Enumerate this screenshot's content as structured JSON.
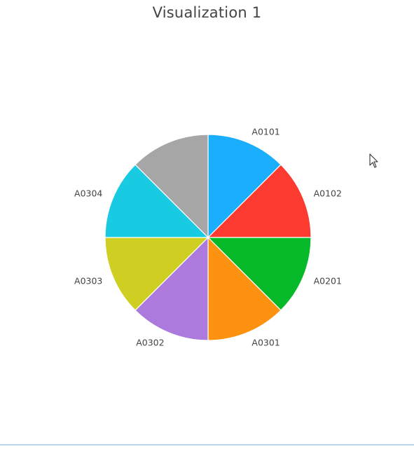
{
  "visualization": {
    "title": "Visualization 1"
  },
  "chart_data": {
    "type": "pie",
    "title": "Visualization 1",
    "labels": [
      "A0101",
      "A0102",
      "A0201",
      "A0301",
      "A0302",
      "A0303",
      "A0304",
      ""
    ],
    "values": [
      1,
      1,
      1,
      1,
      1,
      1,
      1,
      1
    ],
    "colors": [
      "#1aaefc",
      "#fc3a2f",
      "#06b928",
      "#fc920f",
      "#ab7adc",
      "#cfcf23",
      "#19cbe2",
      "#a6a6a6"
    ],
    "legend": "none",
    "start": "top",
    "direction": "clockwise"
  },
  "cursor": {
    "icon": "mouse-pointer-icon"
  }
}
